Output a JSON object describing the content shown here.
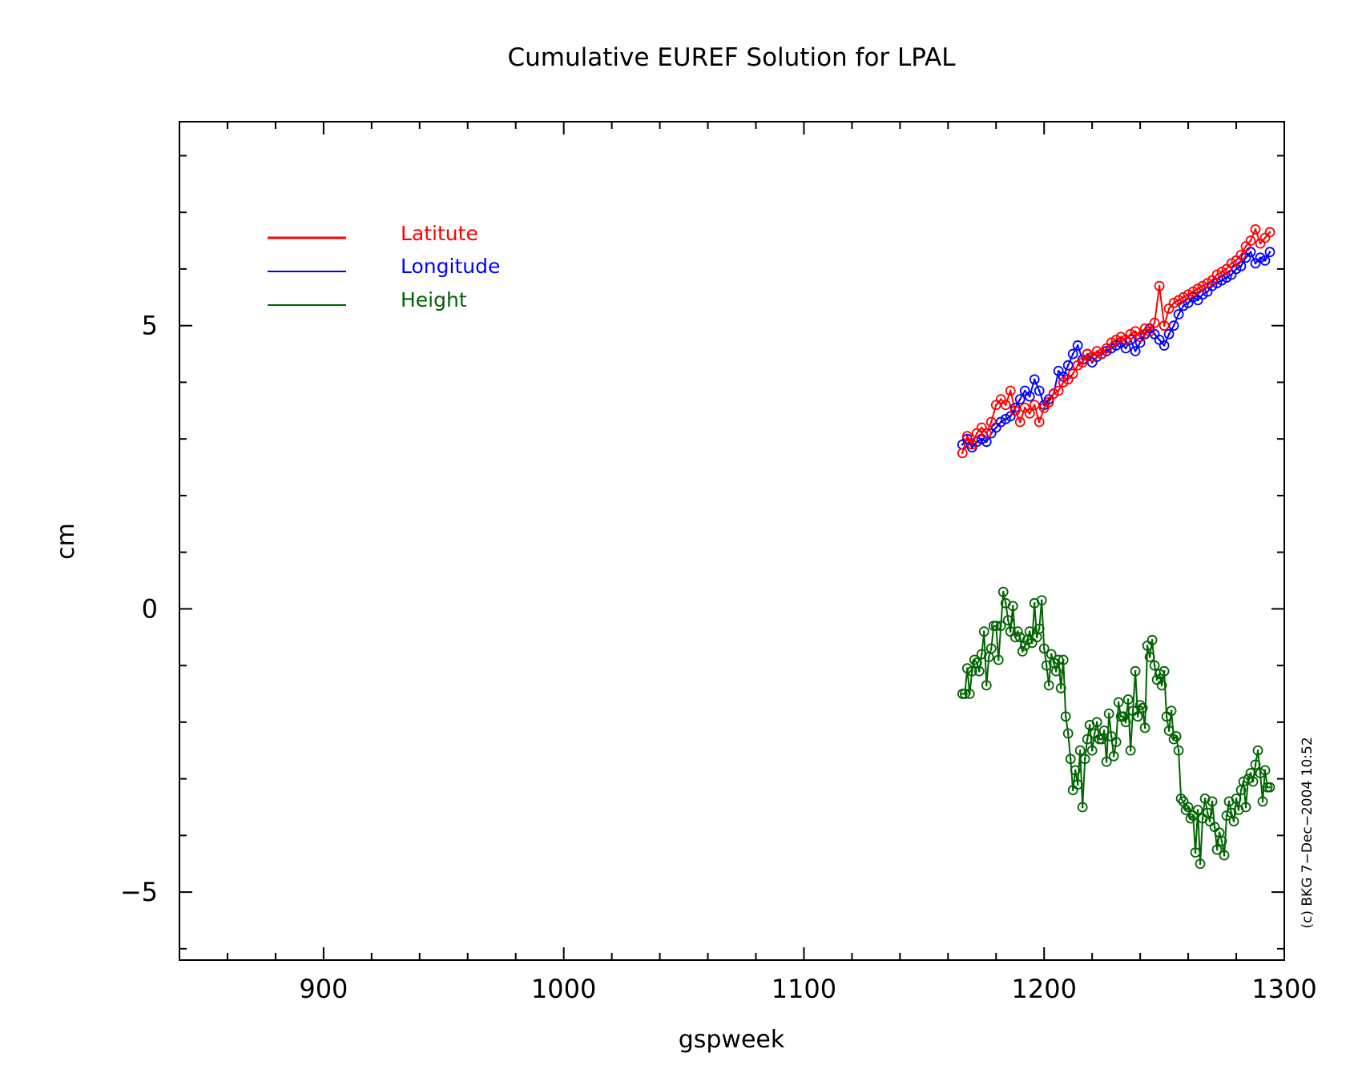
{
  "chart_data": {
    "type": "line",
    "title": "Cumulative EUREF Solution for LPAL",
    "xlabel": "gspweek",
    "ylabel": "cm",
    "xlim": [
      840,
      1300
    ],
    "ylim": [
      -6.2,
      8.6
    ],
    "xticks": [
      900,
      1000,
      1100,
      1200,
      1300
    ],
    "xtick_labels": [
      "900",
      "1000",
      "1100",
      "1200",
      "1300"
    ],
    "yticks": [
      -5,
      0,
      5
    ],
    "ytick_labels": [
      "−5",
      "0",
      "5"
    ],
    "grid": false,
    "legend_position": "top-left",
    "marker": "circle-with-dot",
    "copyright": "(c) BKG 7−Dec−2004 10:52",
    "series": [
      {
        "name": "Latitute",
        "color": "#ff0000",
        "x": [
          1166,
          1168,
          1170,
          1172,
          1174,
          1176,
          1178,
          1180,
          1182,
          1184,
          1186,
          1188,
          1190,
          1192,
          1194,
          1196,
          1198,
          1200,
          1202,
          1204,
          1206,
          1208,
          1210,
          1212,
          1214,
          1216,
          1218,
          1220,
          1222,
          1224,
          1226,
          1228,
          1230,
          1232,
          1234,
          1236,
          1238,
          1240,
          1242,
          1244,
          1246,
          1248,
          1250,
          1252,
          1254,
          1256,
          1258,
          1260,
          1262,
          1264,
          1266,
          1268,
          1270,
          1272,
          1274,
          1276,
          1278,
          1280,
          1282,
          1284,
          1286,
          1288,
          1290,
          1292,
          1294
        ],
        "y": [
          2.75,
          3.05,
          2.9,
          3.1,
          3.2,
          3.1,
          3.3,
          3.6,
          3.7,
          3.6,
          3.85,
          3.5,
          3.3,
          3.55,
          3.45,
          3.6,
          3.3,
          3.55,
          3.65,
          3.8,
          3.85,
          4.0,
          4.05,
          4.15,
          4.3,
          4.35,
          4.5,
          4.45,
          4.55,
          4.5,
          4.6,
          4.7,
          4.75,
          4.8,
          4.75,
          4.85,
          4.9,
          4.8,
          4.95,
          4.9,
          5.05,
          5.7,
          5.0,
          5.3,
          5.4,
          5.45,
          5.5,
          5.55,
          5.6,
          5.65,
          5.7,
          5.75,
          5.8,
          5.9,
          5.95,
          6.0,
          6.1,
          6.15,
          6.25,
          6.4,
          6.5,
          6.7,
          6.45,
          6.55,
          6.65
        ]
      },
      {
        "name": "Longitude",
        "color": "#0000ff",
        "x": [
          1166,
          1168,
          1170,
          1172,
          1174,
          1176,
          1178,
          1180,
          1182,
          1184,
          1186,
          1188,
          1190,
          1192,
          1194,
          1196,
          1198,
          1200,
          1202,
          1204,
          1206,
          1208,
          1210,
          1212,
          1214,
          1216,
          1218,
          1220,
          1222,
          1224,
          1226,
          1228,
          1230,
          1232,
          1234,
          1236,
          1238,
          1240,
          1242,
          1244,
          1246,
          1248,
          1250,
          1252,
          1254,
          1256,
          1258,
          1260,
          1262,
          1264,
          1266,
          1268,
          1270,
          1272,
          1274,
          1276,
          1278,
          1280,
          1282,
          1284,
          1286,
          1288,
          1290,
          1292,
          1294
        ],
        "y": [
          2.9,
          3.0,
          2.85,
          2.95,
          3.0,
          2.95,
          3.1,
          3.2,
          3.3,
          3.35,
          3.4,
          3.55,
          3.7,
          3.85,
          3.75,
          4.05,
          3.85,
          3.6,
          3.7,
          3.8,
          4.2,
          4.1,
          4.3,
          4.5,
          4.65,
          4.4,
          4.5,
          4.35,
          4.45,
          4.5,
          4.55,
          4.6,
          4.65,
          4.7,
          4.6,
          4.75,
          4.55,
          4.7,
          4.85,
          4.95,
          4.85,
          4.75,
          4.65,
          4.85,
          5.0,
          5.2,
          5.35,
          5.4,
          5.5,
          5.45,
          5.55,
          5.6,
          5.7,
          5.75,
          5.8,
          5.85,
          5.9,
          6.0,
          6.05,
          6.2,
          6.3,
          6.1,
          6.2,
          6.15,
          6.3
        ]
      },
      {
        "name": "Height",
        "color": "#006400",
        "x": [
          1166,
          1167,
          1168,
          1169,
          1170,
          1171,
          1172,
          1173,
          1174,
          1175,
          1176,
          1177,
          1178,
          1179,
          1180,
          1181,
          1182,
          1183,
          1184,
          1185,
          1186,
          1187,
          1188,
          1189,
          1190,
          1191,
          1192,
          1193,
          1194,
          1195,
          1196,
          1197,
          1198,
          1199,
          1200,
          1201,
          1202,
          1203,
          1204,
          1205,
          1206,
          1207,
          1208,
          1209,
          1210,
          1211,
          1212,
          1213,
          1214,
          1215,
          1216,
          1217,
          1218,
          1219,
          1220,
          1221,
          1222,
          1223,
          1224,
          1225,
          1226,
          1227,
          1228,
          1229,
          1230,
          1231,
          1232,
          1233,
          1234,
          1235,
          1236,
          1237,
          1238,
          1239,
          1240,
          1241,
          1242,
          1243,
          1244,
          1245,
          1246,
          1247,
          1248,
          1249,
          1250,
          1251,
          1252,
          1253,
          1254,
          1255,
          1256,
          1257,
          1258,
          1259,
          1260,
          1261,
          1262,
          1263,
          1264,
          1265,
          1266,
          1267,
          1268,
          1269,
          1270,
          1271,
          1272,
          1273,
          1274,
          1275,
          1276,
          1277,
          1278,
          1279,
          1280,
          1281,
          1282,
          1283,
          1284,
          1285,
          1286,
          1287,
          1288,
          1289,
          1290,
          1291,
          1292,
          1293,
          1294
        ],
        "y": [
          -1.5,
          -1.5,
          -1.05,
          -1.5,
          -1.1,
          -0.9,
          -0.95,
          -1.1,
          -0.8,
          -0.4,
          -1.35,
          -0.85,
          -0.7,
          -0.3,
          -0.3,
          -0.9,
          -0.3,
          0.3,
          0.1,
          -0.2,
          -0.4,
          0.05,
          -0.5,
          -0.4,
          -0.5,
          -0.75,
          -0.65,
          -0.55,
          -0.4,
          -0.6,
          0.1,
          -0.5,
          -0.35,
          0.15,
          -0.7,
          -1.0,
          -1.35,
          -0.8,
          -0.95,
          -1.1,
          -0.9,
          -1.4,
          -0.9,
          -1.9,
          -2.2,
          -2.65,
          -3.2,
          -2.85,
          -3.1,
          -2.5,
          -3.5,
          -2.65,
          -2.3,
          -2.05,
          -2.5,
          -2.2,
          -2.0,
          -2.3,
          -2.3,
          -2.15,
          -2.7,
          -1.85,
          -2.25,
          -2.6,
          -2.35,
          -1.65,
          -1.9,
          -1.9,
          -2.0,
          -1.6,
          -2.5,
          -1.8,
          -1.1,
          -1.9,
          -1.7,
          -1.75,
          -2.1,
          -0.65,
          -0.85,
          -0.55,
          -1.0,
          -1.25,
          -1.15,
          -1.35,
          -1.1,
          -1.9,
          -2.15,
          -1.8,
          -2.3,
          -2.25,
          -2.5,
          -3.35,
          -3.4,
          -3.55,
          -3.5,
          -3.7,
          -3.65,
          -4.3,
          -3.55,
          -4.5,
          -3.7,
          -3.35,
          -3.6,
          -3.75,
          -3.4,
          -3.85,
          -4.25,
          -3.95,
          -4.1,
          -4.35,
          -3.65,
          -3.4,
          -3.6,
          -3.75,
          -3.35,
          -3.55,
          -3.2,
          -3.05,
          -3.5,
          -3.0,
          -2.9,
          -3.05,
          -2.75,
          -2.5,
          -2.9,
          -3.4,
          -2.85,
          -3.15,
          -3.15
        ]
      }
    ]
  }
}
